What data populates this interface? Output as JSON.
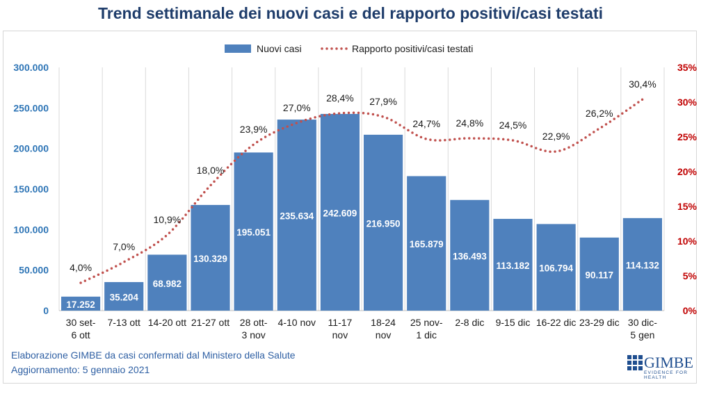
{
  "title": "Trend settimanale dei nuovi casi e del rapporto positivi/casi testati",
  "footer": {
    "line1": "Elaborazione GIMBE da casi confermati dal Ministero della Salute",
    "line2": "Aggiornamento: 5 gennaio 2021"
  },
  "logo": {
    "name": "GIMBE",
    "tagline": "EVIDENCE FOR HEALTH"
  },
  "colors": {
    "bar": "#4f81bd",
    "line": "#c0504d",
    "left_axis": "#2e75b6",
    "right_axis": "#c00000"
  },
  "chart_data": {
    "type": "bar",
    "categories": [
      [
        "30 set-",
        "6 ott"
      ],
      [
        "7-13 ott"
      ],
      [
        "14-20 ott"
      ],
      [
        "21-27 ott"
      ],
      [
        "28 ott-",
        "3 nov"
      ],
      [
        "4-10 nov"
      ],
      [
        "11-17",
        "nov"
      ],
      [
        "18-24",
        "nov"
      ],
      [
        "25 nov-",
        "1 dic"
      ],
      [
        "2-8 dic"
      ],
      [
        "9-15 dic"
      ],
      [
        "16-22 dic"
      ],
      [
        "23-29 dic"
      ],
      [
        "30 dic-",
        "5 gen"
      ]
    ],
    "series": [
      {
        "name": "Nuovi casi",
        "kind": "bar",
        "axis": "left",
        "values": [
          17252,
          35204,
          68982,
          130329,
          195051,
          235634,
          242609,
          216950,
          165879,
          136493,
          113182,
          106794,
          90117,
          114132
        ],
        "labels": [
          "17.252",
          "35.204",
          "68.982",
          "130.329",
          "195.051",
          "235.634",
          "242.609",
          "216.950",
          "165.879",
          "136.493",
          "113.182",
          "106.794",
          "90.117",
          "114.132"
        ]
      },
      {
        "name": "Rapporto positivi/casi testati",
        "kind": "line-dotted",
        "axis": "right",
        "values": [
          4.0,
          7.0,
          10.9,
          18.0,
          23.9,
          27.0,
          28.4,
          27.9,
          24.7,
          24.8,
          24.5,
          22.9,
          26.2,
          30.4
        ],
        "labels": [
          "4,0%",
          "7,0%",
          "10,9%",
          "18,0%",
          "23,9%",
          "27,0%",
          "28,4%",
          "27,9%",
          "24,7%",
          "24,8%",
          "24,5%",
          "22,9%",
          "26,2%",
          "30,4%"
        ]
      }
    ],
    "y_left": {
      "range": [
        0,
        300000
      ],
      "ticks": [
        "0",
        "50.000",
        "100.000",
        "150.000",
        "200.000",
        "250.000",
        "300.000"
      ]
    },
    "y_right": {
      "range": [
        0,
        35
      ],
      "ticks": [
        "0%",
        "5%",
        "10%",
        "15%",
        "20%",
        "25%",
        "30%",
        "35%"
      ]
    },
    "grid": "vertical",
    "legend": "top"
  }
}
